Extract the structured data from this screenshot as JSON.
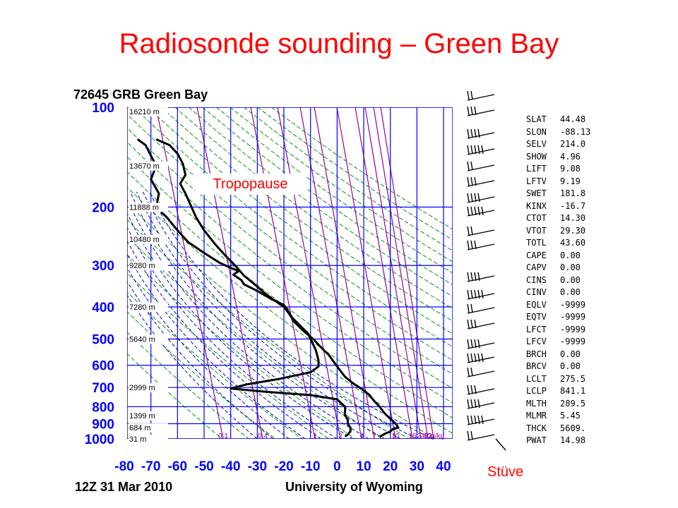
{
  "slide": {
    "title": "Radiosonde sounding – Green Bay",
    "tropopause_label": "Tropopause",
    "diagram_name": "Stüve"
  },
  "chart_data": {
    "type": "line",
    "station_header": "72645 GRB Green Bay",
    "date": "12Z 31 Mar 2010",
    "source": "University of Wyoming",
    "pressure_levels": [
      100,
      200,
      300,
      400,
      500,
      600,
      700,
      800,
      900,
      1000
    ],
    "temperature_ticks": [
      -80,
      -70,
      -60,
      -50,
      -40,
      -30,
      -20,
      -10,
      0,
      10,
      20,
      30,
      40
    ],
    "xlim": [
      -80,
      45
    ],
    "ylim": [
      1000,
      100
    ],
    "height_labels": [
      {
        "p": 103,
        "label": "16210 m"
      },
      {
        "p": 150,
        "label": "13670 m"
      },
      {
        "p": 200,
        "label": "11888 m"
      },
      {
        "p": 250,
        "label": "10480 m"
      },
      {
        "p": 300,
        "label": "9280 m"
      },
      {
        "p": 400,
        "label": "7280 m"
      },
      {
        "p": 500,
        "label": "5640 m"
      },
      {
        "p": 700,
        "label": "2999 m"
      },
      {
        "p": 850,
        "label": "1399 m"
      },
      {
        "p": 925,
        "label": "684 m"
      },
      {
        "p": 1000,
        "label": "31 m"
      }
    ],
    "mixing_ratio_labels": [
      "0.1",
      "0.4",
      "1",
      "2",
      "4",
      "7",
      "10",
      "16",
      "24",
      "32",
      "40g/kg"
    ],
    "series": [
      {
        "points": [
          [
            -68,
            125
          ],
          [
            -63,
            130
          ],
          [
            -60,
            138
          ],
          [
            -58,
            148
          ],
          [
            -57,
            160
          ],
          [
            -59,
            170
          ],
          [
            -57,
            182
          ],
          [
            -55,
            198
          ],
          [
            -53,
            215
          ],
          [
            -50,
            235
          ],
          [
            -46,
            258
          ],
          [
            -42,
            280
          ],
          [
            -38,
            302
          ],
          [
            -35,
            322
          ],
          [
            -31,
            342
          ],
          [
            -27,
            365
          ],
          [
            -23,
            385
          ],
          [
            -20,
            400
          ],
          [
            -18,
            420
          ],
          [
            -16,
            445
          ],
          [
            -13,
            470
          ],
          [
            -9,
            500
          ],
          [
            -6,
            530
          ],
          [
            -3,
            560
          ],
          [
            -1,
            590
          ],
          [
            1,
            620
          ],
          [
            3,
            650
          ],
          [
            6,
            680
          ],
          [
            9,
            705
          ],
          [
            12,
            735
          ],
          [
            14,
            770
          ],
          [
            16,
            800
          ],
          [
            18,
            840
          ],
          [
            20,
            870
          ],
          [
            22,
            900
          ],
          [
            23,
            925
          ],
          [
            21,
            935
          ],
          [
            20,
            950
          ],
          [
            18,
            965
          ],
          [
            16,
            985
          ]
        ]
      },
      {
        "points": [
          [
            -75,
            125
          ],
          [
            -72,
            130
          ],
          [
            -70,
            140
          ],
          [
            -68,
            150
          ],
          [
            -70,
            165
          ],
          [
            -67,
            182
          ],
          [
            -68,
            200
          ],
          [
            -64,
            215
          ],
          [
            -60,
            235
          ],
          [
            -56,
            255
          ],
          [
            -50,
            275
          ],
          [
            -44,
            295
          ],
          [
            -40,
            305
          ],
          [
            -37,
            312
          ],
          [
            -39,
            320
          ],
          [
            -36,
            332
          ],
          [
            -35,
            342
          ],
          [
            -30,
            358
          ],
          [
            -25,
            378
          ],
          [
            -20,
            395
          ],
          [
            -19,
            405
          ],
          [
            -17,
            430
          ],
          [
            -14,
            455
          ],
          [
            -11,
            480
          ],
          [
            -10,
            500
          ],
          [
            -8,
            540
          ],
          [
            -7,
            580
          ],
          [
            -7,
            605
          ],
          [
            -10,
            630
          ],
          [
            -22,
            660
          ],
          [
            -34,
            685
          ],
          [
            -40,
            705
          ],
          [
            -28,
            720
          ],
          [
            -10,
            738
          ],
          [
            0,
            760
          ],
          [
            3,
            800
          ],
          [
            3,
            850
          ],
          [
            4,
            875
          ],
          [
            4,
            900
          ],
          [
            5,
            925
          ],
          [
            5,
            950
          ],
          [
            4,
            970
          ],
          [
            3,
            985
          ]
        ]
      }
    ]
  },
  "stability_indices": [
    {
      "name": "SLAT",
      "value": "44.48"
    },
    {
      "name": "SLON",
      "value": "-88.13"
    },
    {
      "name": "SELV",
      "value": "214.0"
    },
    {
      "name": "SHOW",
      "value": "4.96"
    },
    {
      "name": "LIFT",
      "value": "9.08"
    },
    {
      "name": "LFTV",
      "value": "9.19"
    },
    {
      "name": "SWET",
      "value": "181.8"
    },
    {
      "name": "KINX",
      "value": "-16.7"
    },
    {
      "name": "CTOT",
      "value": "14.30"
    },
    {
      "name": "VTOT",
      "value": "29.30"
    },
    {
      "name": "TOTL",
      "value": "43.60"
    },
    {
      "name": "CAPE",
      "value": "0.00"
    },
    {
      "name": "CAPV",
      "value": "0.00"
    },
    {
      "name": "CINS",
      "value": "0.00"
    },
    {
      "name": "CINV",
      "value": "0.00"
    },
    {
      "name": "EQLV",
      "value": "-9999"
    },
    {
      "name": "EQTV",
      "value": "-9999"
    },
    {
      "name": "LFCT",
      "value": "-9999"
    },
    {
      "name": "LFCV",
      "value": "-9999"
    },
    {
      "name": "BRCH",
      "value": "0.00"
    },
    {
      "name": "BRCV",
      "value": "0.00"
    },
    {
      "name": "LCLT",
      "value": "275.5"
    },
    {
      "name": "LCLP",
      "value": "841.1"
    },
    {
      "name": "MLTH",
      "value": "289.5"
    },
    {
      "name": "MLMR",
      "value": "5.45"
    },
    {
      "name": "THCK",
      "value": "5609."
    },
    {
      "name": "PWAT",
      "value": "14.98"
    }
  ],
  "colors": {
    "title": "#ff0000",
    "grid": "#0000ff",
    "dry_adiabat": "#009900",
    "moist_adiabat": "#0000cc",
    "mixing_ratio": "#990099",
    "trace": "#000000"
  }
}
